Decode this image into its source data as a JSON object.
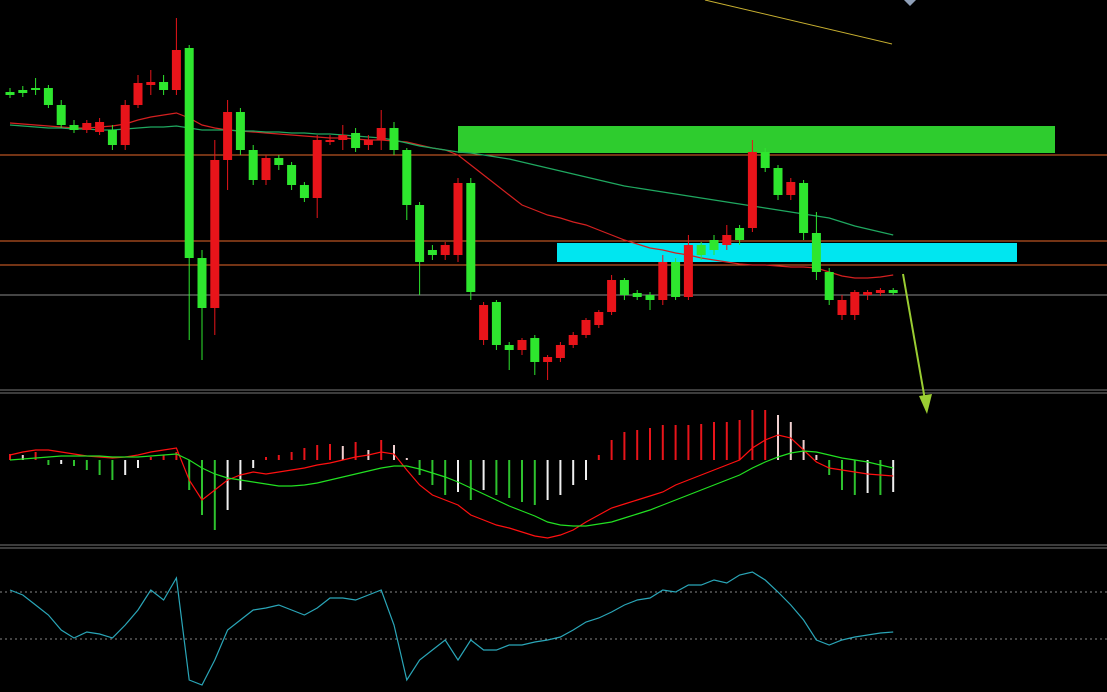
{
  "chart_data": [
    {
      "type": "candlestick",
      "up_color": "#e8141a",
      "down_color": "#2ee62e",
      "ylim": [
        0,
        390
      ],
      "open": [
        298,
        300,
        302,
        302,
        285,
        265,
        260,
        258,
        260,
        245,
        285,
        305,
        308,
        300,
        342,
        132,
        82,
        230,
        278,
        240,
        210,
        232,
        225,
        205,
        192,
        248,
        250,
        257,
        245,
        250,
        262,
        240,
        185,
        140,
        135,
        135,
        207,
        50,
        88,
        45,
        40,
        52,
        28,
        32,
        45,
        55,
        65,
        78,
        110,
        97,
        95,
        90,
        128,
        93,
        145,
        150,
        145,
        162,
        162,
        238,
        222,
        195,
        207,
        157,
        118,
        75,
        75,
        95,
        97,
        100
      ],
      "high": [
        302,
        304,
        312,
        305,
        290,
        270,
        270,
        272,
        265,
        290,
        315,
        320,
        315,
        372,
        345,
        140,
        250,
        290,
        282,
        245,
        235,
        235,
        228,
        208,
        255,
        255,
        265,
        262,
        255,
        280,
        268,
        242,
        188,
        145,
        148,
        212,
        212,
        88,
        90,
        48,
        52,
        55,
        35,
        48,
        58,
        72,
        80,
        115,
        112,
        100,
        98,
        135,
        132,
        155,
        148,
        155,
        165,
        165,
        250,
        242,
        225,
        212,
        210,
        178,
        122,
        95,
        100,
        100,
        102,
        102
      ],
      "low": [
        292,
        293,
        295,
        282,
        262,
        257,
        257,
        255,
        240,
        240,
        282,
        295,
        295,
        295,
        50,
        30,
        55,
        200,
        235,
        205,
        205,
        220,
        200,
        188,
        172,
        245,
        240,
        238,
        240,
        240,
        235,
        170,
        95,
        130,
        130,
        128,
        90,
        45,
        40,
        20,
        35,
        15,
        10,
        28,
        42,
        52,
        62,
        75,
        90,
        90,
        80,
        85,
        90,
        90,
        130,
        135,
        140,
        145,
        158,
        218,
        190,
        190,
        150,
        110,
        85,
        70,
        70,
        90,
        94,
        95
      ],
      "close": [
        295,
        297,
        300,
        285,
        265,
        260,
        267,
        268,
        245,
        285,
        307,
        308,
        300,
        340,
        132,
        82,
        230,
        278,
        240,
        210,
        232,
        225,
        205,
        192,
        250,
        250,
        255,
        242,
        250,
        262,
        240,
        185,
        128,
        135,
        145,
        207,
        98,
        85,
        45,
        40,
        50,
        28,
        33,
        45,
        55,
        70,
        78,
        110,
        95,
        93,
        90,
        128,
        93,
        145,
        135,
        140,
        155,
        150,
        238,
        222,
        195,
        208,
        157,
        118,
        90,
        90,
        98,
        98,
        100,
        97
      ],
      "series": [
        {
          "color": "#d42020",
          "values": [
            267,
            266,
            265,
            264,
            263,
            262,
            262,
            263,
            264,
            266,
            270,
            273,
            275,
            277,
            272,
            265,
            262,
            260,
            259,
            258,
            257,
            256,
            255,
            254,
            253,
            252,
            252,
            251,
            250,
            250,
            249,
            248,
            245,
            242,
            240,
            235,
            225,
            215,
            205,
            195,
            185,
            180,
            175,
            172,
            168,
            165,
            160,
            155,
            150,
            146,
            142,
            140,
            137,
            135,
            132,
            130,
            128,
            126,
            125,
            125,
            124,
            123,
            123,
            122,
            118,
            114,
            112,
            112,
            113,
            115
          ]
        },
        {
          "color": "#1fa860",
          "values": [
            265,
            264,
            263,
            262,
            262,
            261,
            261,
            260,
            260,
            261,
            262,
            263,
            263,
            264,
            262,
            260,
            260,
            260,
            259,
            259,
            258,
            258,
            257,
            257,
            256,
            256,
            255,
            254,
            253,
            252,
            250,
            247,
            244,
            242,
            240,
            238,
            237,
            235,
            233,
            231,
            228,
            225,
            222,
            219,
            216,
            213,
            210,
            207,
            204,
            202,
            200,
            198,
            196,
            194,
            192,
            190,
            188,
            186,
            184,
            182,
            180,
            178,
            176,
            174,
            172,
            168,
            164,
            161,
            158,
            155
          ]
        }
      ]
    },
    {
      "type": "macd",
      "ylim": [
        -85,
        67
      ],
      "rise_pos_color": "#e8141a",
      "fall_pos_color": "#f0d0d0",
      "fall_neg_color": "#2ec22e",
      "rise_neg_color": "#f0f0f0",
      "histogram": [
        6,
        5,
        8,
        -5,
        -4,
        -6,
        -10,
        -15,
        -20,
        -15,
        -8,
        3,
        5,
        8,
        -30,
        -55,
        -70,
        -50,
        -30,
        -8,
        3,
        5,
        8,
        12,
        15,
        16,
        14,
        18,
        10,
        20,
        15,
        2,
        -15,
        -25,
        -35,
        -32,
        -40,
        -30,
        -35,
        -38,
        -42,
        -45,
        -40,
        -35,
        -25,
        -20,
        5,
        20,
        28,
        30,
        32,
        35,
        35,
        35,
        36,
        38,
        38,
        40,
        50,
        50,
        45,
        38,
        20,
        5,
        -15,
        -30,
        -35,
        -33,
        -35,
        -32
      ],
      "series": [
        {
          "color": "#ff1010",
          "values": [
            5,
            8,
            10,
            10,
            8,
            6,
            4,
            3,
            2,
            3,
            5,
            8,
            10,
            12,
            -20,
            -40,
            -30,
            -20,
            -15,
            -12,
            -14,
            -12,
            -10,
            -8,
            -5,
            -3,
            0,
            3,
            5,
            8,
            6,
            -10,
            -25,
            -35,
            -40,
            -45,
            -55,
            -60,
            -65,
            -68,
            -72,
            -76,
            -78,
            -75,
            -70,
            -62,
            -55,
            -48,
            -44,
            -40,
            -36,
            -32,
            -25,
            -20,
            -15,
            -10,
            -5,
            0,
            12,
            20,
            25,
            22,
            10,
            -2,
            -8,
            -10,
            -12,
            -14,
            -15,
            -16
          ]
        },
        {
          "color": "#22e022",
          "values": [
            0,
            1,
            2,
            3,
            4,
            4,
            4,
            4,
            3,
            3,
            3,
            4,
            5,
            6,
            0,
            -8,
            -14,
            -18,
            -20,
            -22,
            -24,
            -26,
            -26,
            -25,
            -23,
            -20,
            -17,
            -14,
            -11,
            -8,
            -6,
            -6,
            -9,
            -13,
            -17,
            -22,
            -28,
            -34,
            -40,
            -46,
            -51,
            -56,
            -62,
            -65,
            -66,
            -66,
            -64,
            -62,
            -58,
            -54,
            -50,
            -45,
            -40,
            -35,
            -30,
            -25,
            -20,
            -15,
            -8,
            -2,
            3,
            7,
            9,
            8,
            5,
            2,
            0,
            -2,
            -5,
            -8
          ]
        }
      ]
    },
    {
      "type": "oscillator",
      "ylim": [
        0,
        142
      ],
      "levels": [
        98,
        51
      ],
      "level_color": "#888888",
      "series": [
        {
          "color": "#2aa6b8",
          "values": [
            100,
            95,
            85,
            75,
            60,
            52,
            58,
            56,
            52,
            65,
            80,
            100,
            90,
            112,
            10,
            5,
            30,
            60,
            70,
            80,
            82,
            85,
            80,
            75,
            82,
            92,
            92,
            90,
            95,
            100,
            65,
            10,
            30,
            40,
            50,
            30,
            50,
            40,
            40,
            45,
            45,
            48,
            50,
            53,
            60,
            68,
            72,
            78,
            85,
            90,
            92,
            100,
            98,
            105,
            105,
            110,
            107,
            115,
            118,
            110,
            98,
            85,
            70,
            50,
            45,
            50,
            53,
            55,
            57,
            58
          ]
        }
      ]
    }
  ]
}
